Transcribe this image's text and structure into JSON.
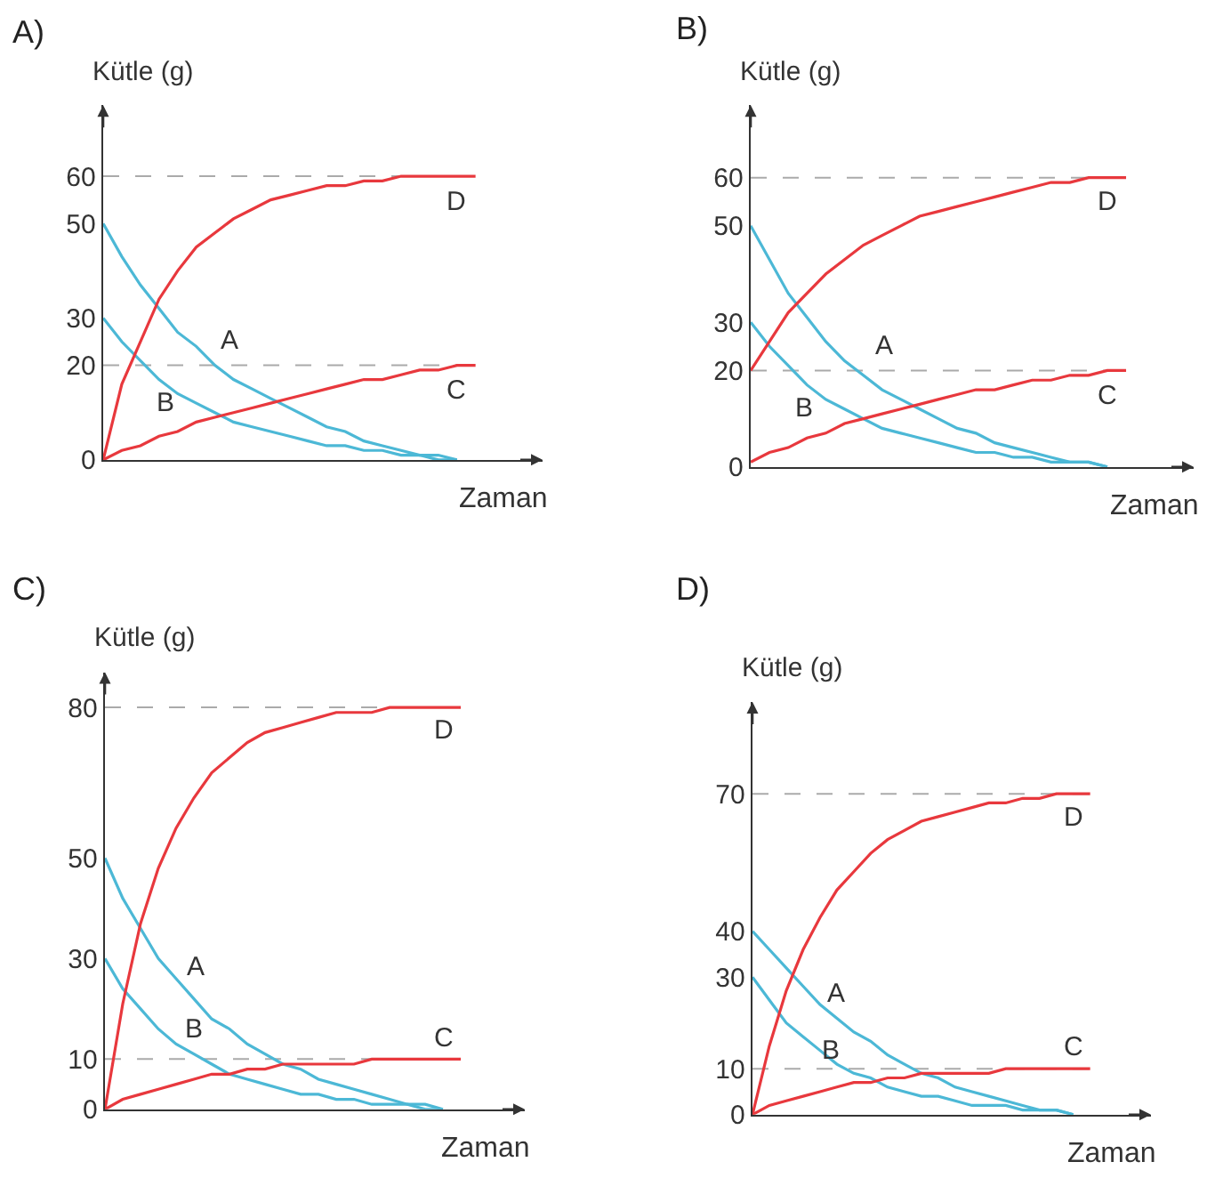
{
  "chart_data": [
    {
      "type": "line",
      "title": "A)",
      "xlabel": "Zaman",
      "ylabel": "Kütle (g)",
      "categories": [
        null,
        null,
        null,
        null,
        null,
        null,
        null,
        null,
        null,
        null,
        null,
        null,
        null,
        null,
        null,
        null,
        null,
        null,
        null,
        null,
        null
      ],
      "tick_labels": "y",
      "ylim": [
        0,
        75
      ],
      "yticks": [
        0,
        20,
        30,
        50,
        60
      ],
      "series": [
        {
          "name": "A",
          "color": "#4cb8d6",
          "values": [
            50,
            43,
            37,
            32,
            27,
            24,
            20,
            17,
            15,
            13,
            11,
            9,
            7,
            6,
            4,
            3,
            2,
            1,
            1,
            0,
            null
          ]
        },
        {
          "name": "B",
          "color": "#4cb8d6",
          "values": [
            30,
            25,
            21,
            17,
            14,
            12,
            10,
            8,
            7,
            6,
            5,
            4,
            3,
            3,
            2,
            2,
            1,
            1,
            0,
            0,
            null
          ]
        },
        {
          "name": "C",
          "color": "#e8383d",
          "values": [
            0,
            2,
            3,
            5,
            6,
            8,
            9,
            10,
            11,
            12,
            13,
            14,
            15,
            16,
            17,
            17,
            18,
            19,
            19,
            20,
            20
          ]
        },
        {
          "name": "D",
          "color": "#e8383d",
          "values": [
            0,
            16,
            25,
            34,
            40,
            45,
            48,
            51,
            53,
            55,
            56,
            57,
            58,
            58,
            59,
            59,
            60,
            60,
            60,
            60,
            60
          ]
        }
      ],
      "ref_lines": [
        {
          "axis": "y",
          "value": 60,
          "color": "#aaaaaa",
          "line_style": "dashed"
        },
        {
          "axis": "y",
          "value": 20,
          "color": "#aaaaaa",
          "line_style": "dashed"
        }
      ]
    },
    {
      "type": "line",
      "title": "B)",
      "xlabel": "Zaman",
      "ylabel": "Kütle (g)",
      "categories": [
        null,
        null,
        null,
        null,
        null,
        null,
        null,
        null,
        null,
        null,
        null,
        null,
        null,
        null,
        null,
        null,
        null,
        null,
        null,
        null,
        null
      ],
      "tick_labels": "y",
      "ylim": [
        0,
        75
      ],
      "yticks": [
        0,
        20,
        30,
        50,
        60
      ],
      "series": [
        {
          "name": "A",
          "color": "#4cb8d6",
          "values": [
            50,
            43,
            36,
            31,
            26,
            22,
            19,
            16,
            14,
            12,
            10,
            8,
            7,
            5,
            4,
            3,
            2,
            1,
            1,
            0,
            null
          ]
        },
        {
          "name": "B",
          "color": "#4cb8d6",
          "values": [
            30,
            25,
            21,
            17,
            14,
            12,
            10,
            8,
            7,
            6,
            5,
            4,
            3,
            3,
            2,
            2,
            1,
            1,
            1,
            0,
            null
          ]
        },
        {
          "name": "C",
          "color": "#e8383d",
          "values": [
            1,
            3,
            4,
            6,
            7,
            9,
            10,
            11,
            12,
            13,
            14,
            15,
            16,
            16,
            17,
            18,
            18,
            19,
            19,
            20,
            20
          ]
        },
        {
          "name": "D",
          "color": "#e8383d",
          "values": [
            20,
            26,
            32,
            36,
            40,
            43,
            46,
            48,
            50,
            52,
            53,
            54,
            55,
            56,
            57,
            58,
            59,
            59,
            60,
            60,
            60
          ]
        }
      ],
      "ref_lines": [
        {
          "axis": "y",
          "value": 60,
          "color": "#aaaaaa",
          "line_style": "dashed"
        },
        {
          "axis": "y",
          "value": 20,
          "color": "#aaaaaa",
          "line_style": "dashed"
        }
      ]
    },
    {
      "type": "line",
      "title": "C)",
      "xlabel": "Zaman",
      "ylabel": "Kütle (g)",
      "categories": [
        null,
        null,
        null,
        null,
        null,
        null,
        null,
        null,
        null,
        null,
        null,
        null,
        null,
        null,
        null,
        null,
        null,
        null,
        null,
        null,
        null
      ],
      "tick_labels": "y",
      "ylim": [
        0,
        87
      ],
      "yticks": [
        0,
        10,
        30,
        50,
        80
      ],
      "series": [
        {
          "name": "A",
          "color": "#4cb8d6",
          "values": [
            50,
            42,
            36,
            30,
            26,
            22,
            18,
            16,
            13,
            11,
            9,
            8,
            6,
            5,
            4,
            3,
            2,
            1,
            1,
            0,
            null
          ]
        },
        {
          "name": "B",
          "color": "#4cb8d6",
          "values": [
            30,
            24,
            20,
            16,
            13,
            11,
            9,
            7,
            6,
            5,
            4,
            3,
            3,
            2,
            2,
            1,
            1,
            1,
            0,
            0,
            null
          ]
        },
        {
          "name": "C",
          "color": "#e8383d",
          "values": [
            0,
            2,
            3,
            4,
            5,
            6,
            7,
            7,
            8,
            8,
            9,
            9,
            9,
            9,
            9,
            10,
            10,
            10,
            10,
            10,
            10
          ]
        },
        {
          "name": "D",
          "color": "#e8383d",
          "values": [
            0,
            21,
            37,
            48,
            56,
            62,
            67,
            70,
            73,
            75,
            76,
            77,
            78,
            79,
            79,
            79,
            80,
            80,
            80,
            80,
            80
          ]
        }
      ],
      "ref_lines": [
        {
          "axis": "y",
          "value": 80,
          "color": "#aaaaaa",
          "line_style": "dashed"
        },
        {
          "axis": "y",
          "value": 10,
          "color": "#aaaaaa",
          "line_style": "dashed"
        }
      ]
    },
    {
      "type": "line",
      "title": "D)",
      "xlabel": "Zaman",
      "ylabel": "Kütle (g)",
      "categories": [
        null,
        null,
        null,
        null,
        null,
        null,
        null,
        null,
        null,
        null,
        null,
        null,
        null,
        null,
        null,
        null,
        null,
        null,
        null,
        null,
        null
      ],
      "tick_labels": "y",
      "ylim": [
        0,
        90
      ],
      "yticks": [
        0,
        10,
        30,
        40,
        70
      ],
      "series": [
        {
          "name": "A",
          "color": "#4cb8d6",
          "values": [
            40,
            36,
            32,
            28,
            24,
            21,
            18,
            16,
            13,
            11,
            9,
            8,
            6,
            5,
            4,
            3,
            2,
            1,
            1,
            0,
            null
          ]
        },
        {
          "name": "B",
          "color": "#4cb8d6",
          "values": [
            30,
            25,
            20,
            17,
            14,
            11,
            9,
            8,
            6,
            5,
            4,
            4,
            3,
            2,
            2,
            2,
            1,
            1,
            1,
            0,
            null
          ]
        },
        {
          "name": "C",
          "color": "#e8383d",
          "values": [
            0,
            2,
            3,
            4,
            5,
            6,
            7,
            7,
            8,
            8,
            9,
            9,
            9,
            9,
            9,
            10,
            10,
            10,
            10,
            10,
            10
          ]
        },
        {
          "name": "D",
          "color": "#e8383d",
          "values": [
            0,
            15,
            27,
            36,
            43,
            49,
            53,
            57,
            60,
            62,
            64,
            65,
            66,
            67,
            68,
            68,
            69,
            69,
            70,
            70,
            70
          ]
        }
      ],
      "ref_lines": [
        {
          "axis": "y",
          "value": 70,
          "color": "#aaaaaa",
          "line_style": "dashed"
        },
        {
          "axis": "y",
          "value": 10,
          "color": "#aaaaaa",
          "line_style": "dashed"
        }
      ]
    }
  ]
}
